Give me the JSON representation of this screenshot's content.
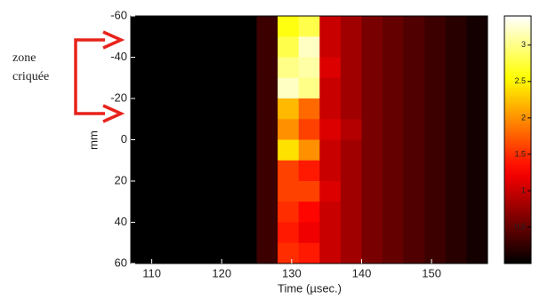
{
  "chart_data": {
    "type": "heatmap",
    "x_label": "Time (µsec.)",
    "y_label": "mm",
    "annotation": [
      "zone",
      "criquée"
    ],
    "x_edges": [
      107,
      110,
      113,
      116,
      119,
      122,
      125,
      128,
      131,
      134,
      137,
      140,
      143,
      146,
      149,
      152,
      155,
      158
    ],
    "y_edges": [
      -60,
      -50,
      -40,
      -30,
      -20,
      -10,
      0,
      10,
      20,
      30,
      40,
      50,
      60
    ],
    "values": [
      [
        0,
        0,
        0,
        0,
        0,
        0,
        0.3,
        2.6,
        2.8,
        1.0,
        0.8,
        0.6,
        0.5,
        0.4,
        0.3,
        0.2,
        0.1
      ],
      [
        0,
        0,
        0,
        0,
        0,
        0,
        0.3,
        2.8,
        3.2,
        1.0,
        0.8,
        0.6,
        0.5,
        0.4,
        0.3,
        0.2,
        0.1
      ],
      [
        0,
        0,
        0,
        0,
        0,
        0,
        0.3,
        3.0,
        3.1,
        1.1,
        0.8,
        0.6,
        0.5,
        0.4,
        0.3,
        0.2,
        0.1
      ],
      [
        0,
        0,
        0,
        0,
        0,
        0,
        0.3,
        3.2,
        3.0,
        1.0,
        0.8,
        0.6,
        0.5,
        0.4,
        0.3,
        0.2,
        0.1
      ],
      [
        0,
        0,
        0,
        0,
        0,
        0,
        0.3,
        2.2,
        1.8,
        1.0,
        0.8,
        0.6,
        0.5,
        0.4,
        0.3,
        0.2,
        0.1
      ],
      [
        0,
        0,
        0,
        0,
        0,
        0,
        0.3,
        2.0,
        1.6,
        1.1,
        0.9,
        0.6,
        0.5,
        0.4,
        0.3,
        0.2,
        0.1
      ],
      [
        0,
        0,
        0,
        0,
        0,
        0,
        0.3,
        2.4,
        2.0,
        1.0,
        0.8,
        0.6,
        0.5,
        0.4,
        0.3,
        0.2,
        0.1
      ],
      [
        0,
        0,
        0,
        0,
        0,
        0,
        0.3,
        1.6,
        1.4,
        1.0,
        0.8,
        0.6,
        0.5,
        0.4,
        0.3,
        0.2,
        0.1
      ],
      [
        0,
        0,
        0,
        0,
        0,
        0,
        0.3,
        1.6,
        1.6,
        1.1,
        0.8,
        0.6,
        0.5,
        0.4,
        0.3,
        0.2,
        0.1
      ],
      [
        0,
        0,
        0,
        0,
        0,
        0,
        0.3,
        1.5,
        1.3,
        1.0,
        0.8,
        0.6,
        0.5,
        0.4,
        0.3,
        0.2,
        0.1
      ],
      [
        0,
        0,
        0,
        0,
        0,
        0,
        0.3,
        1.4,
        1.2,
        1.0,
        0.8,
        0.6,
        0.5,
        0.4,
        0.3,
        0.2,
        0.1
      ],
      [
        0,
        0,
        0,
        0,
        0,
        0,
        0.3,
        1.5,
        1.4,
        1.0,
        0.8,
        0.6,
        0.5,
        0.4,
        0.3,
        0.2,
        0.1
      ]
    ],
    "xlim": [
      107,
      158
    ],
    "xticks": [
      110,
      120,
      130,
      140,
      150
    ],
    "ylim": [
      -60,
      60
    ],
    "yticks": [
      -60,
      -40,
      -20,
      0,
      20,
      40,
      60
    ],
    "y_inverted": true,
    "clim": [
      0,
      3.4
    ],
    "cticks": [
      0.5,
      1,
      1.5,
      2,
      2.5,
      3
    ],
    "colormap": "hot"
  }
}
